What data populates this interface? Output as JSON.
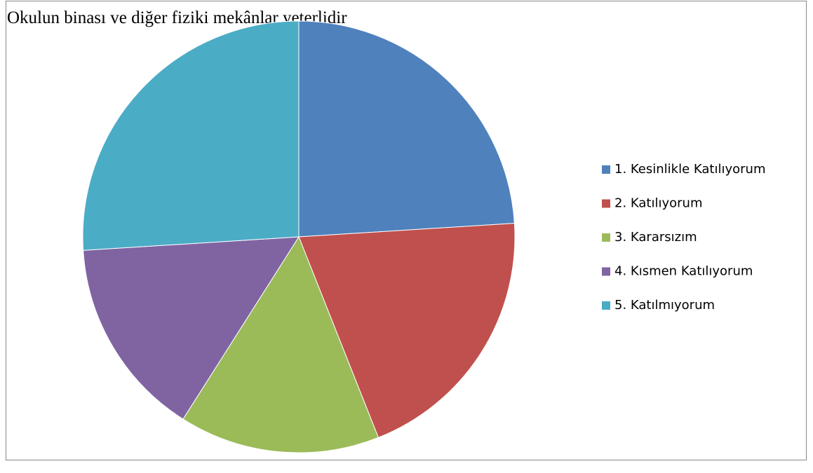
{
  "chart_data": {
    "type": "pie",
    "title": "Okulun binası ve diğer fiziki mekânlar yeterlidir",
    "categories": [
      "1. Kesinlikle Katılıyorum",
      "2. Katılıyorum",
      "3. Kararsızım",
      "4. Kısmen Katılıyorum",
      "5. Katılmıyorum"
    ],
    "values": [
      24,
      20,
      15,
      15,
      26
    ],
    "colors": [
      "#4f81bd",
      "#c0504d",
      "#9bbb59",
      "#8064a2",
      "#4bacc6"
    ],
    "legend": "right"
  }
}
